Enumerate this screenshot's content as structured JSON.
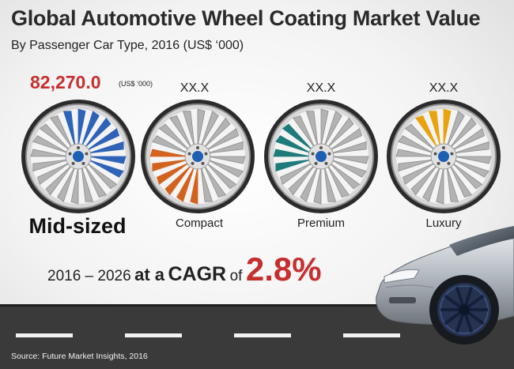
{
  "header": {
    "title": "Global Automotive Wheel Coating Market Value",
    "subtitle": "By Passenger Car Type, 2016 (US$ ‘000)"
  },
  "highlight": {
    "value": "82,270.0",
    "unit": "(US$ ‘000)"
  },
  "wheels": [
    {
      "label": "Mid-sized",
      "value": "82,270.0",
      "accent": "#2f63b8",
      "share_deg": 150,
      "start_deg": 330
    },
    {
      "label": "Compact",
      "value": "XX.X",
      "accent": "#d1631f",
      "share_deg": 90,
      "start_deg": 180
    },
    {
      "label": "Premium",
      "value": "XX.X",
      "accent": "#1f7b7b",
      "share_deg": 70,
      "start_deg": 240
    },
    {
      "label": "Luxury",
      "value": "XX.X",
      "accent": "#e8a40f",
      "share_deg": 40,
      "start_deg": 320
    }
  ],
  "cagr": {
    "period": "2016 – 2026",
    "at_a": "at a",
    "word": "CAGR",
    "of": "of",
    "value": "2.8%"
  },
  "source": "Source: Future Market Insights, 2016",
  "chart_data": {
    "type": "bar",
    "title": "Global Automotive Wheel Coating Market Value",
    "subtitle": "By Passenger Car Type, 2016 (US$ ‘000)",
    "categories": [
      "Mid-sized",
      "Compact",
      "Premium",
      "Luxury"
    ],
    "values": [
      82270.0,
      null,
      null,
      null
    ],
    "value_labels": [
      "82,270.0",
      "XX.X",
      "XX.X",
      "XX.X"
    ],
    "unit": "US$ ‘000",
    "year": 2016,
    "annotation": "2016 – 2026 at a CAGR of 2.8%"
  },
  "colors": {
    "title": "#2a2a2a",
    "highlight_red": "#c62f2f",
    "road": "#3a3a3a",
    "lane_marking": "#f2f2f2",
    "rim_silver": "#c9c9c9",
    "hub": "#1c5fb3"
  },
  "icons": [
    "wheel-icon",
    "car-icon"
  ]
}
